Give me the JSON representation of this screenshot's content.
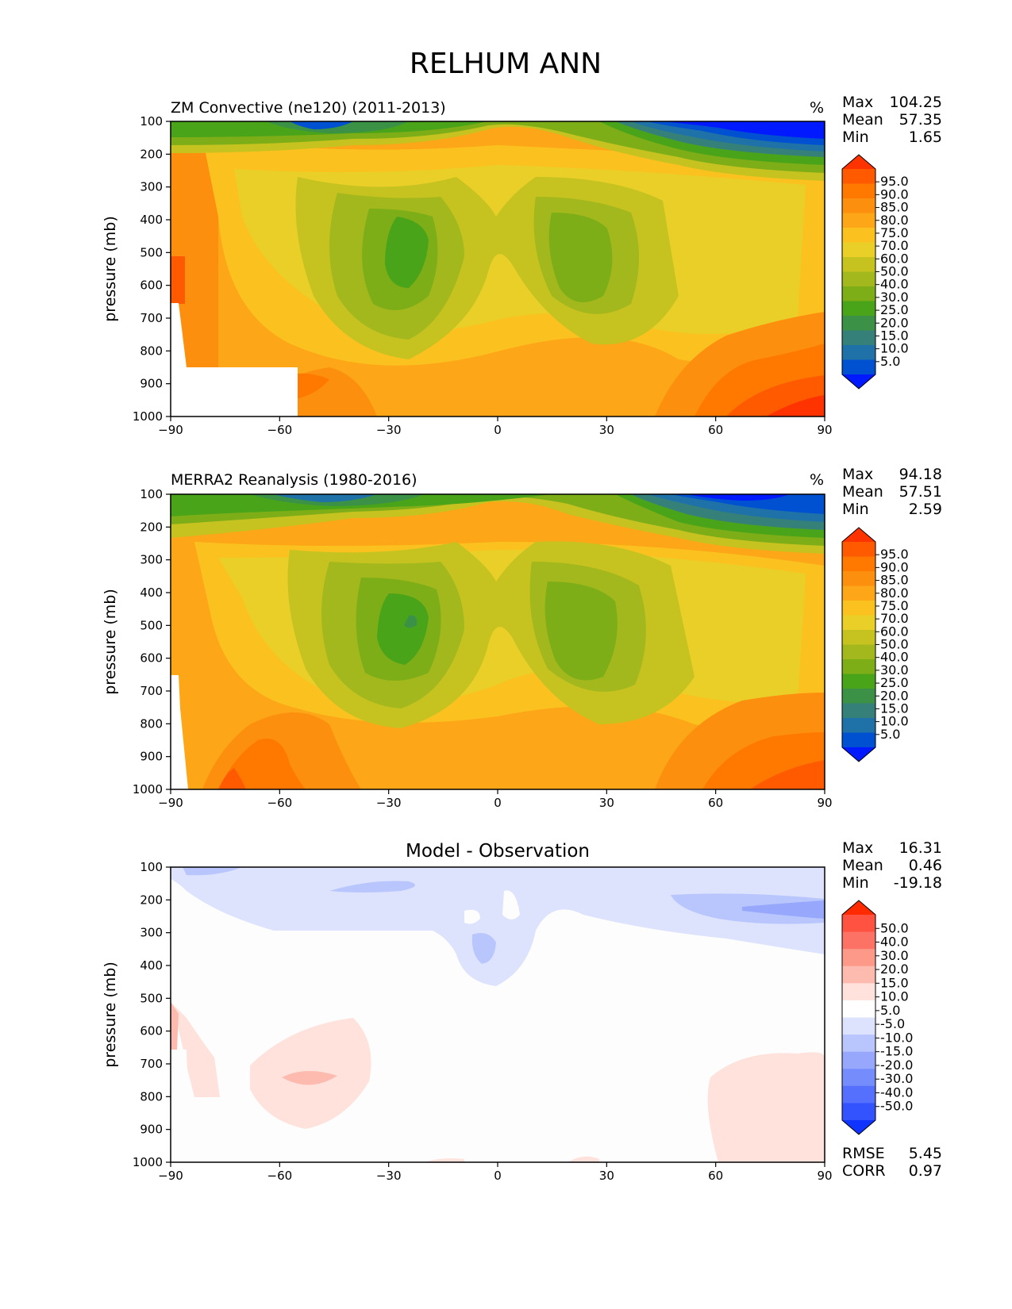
{
  "figure_title": "RELHUM ANN",
  "panels": [
    {
      "title": "ZM Convective (ne120) (2011-2013)",
      "units": "%",
      "stats": [
        {
          "label": "Max",
          "value": "104.25"
        },
        {
          "label": "Mean",
          "value": "57.35"
        },
        {
          "label": "Min",
          "value": "1.65"
        }
      ],
      "colorbar_labels": [
        "95.0",
        "90.0",
        "85.0",
        "80.0",
        "75.0",
        "70.0",
        "60.0",
        "50.0",
        "40.0",
        "30.0",
        "25.0",
        "20.0",
        "15.0",
        "10.0",
        "5.0"
      ]
    },
    {
      "title": "MERRA2 Reanalysis (1980-2016)",
      "units": "%",
      "stats": [
        {
          "label": "Max",
          "value": "94.18"
        },
        {
          "label": "Mean",
          "value": "57.51"
        },
        {
          "label": "Min",
          "value": "2.59"
        }
      ],
      "colorbar_labels": [
        "95.0",
        "90.0",
        "85.0",
        "80.0",
        "75.0",
        "70.0",
        "60.0",
        "50.0",
        "40.0",
        "30.0",
        "25.0",
        "20.0",
        "15.0",
        "10.0",
        "5.0"
      ]
    },
    {
      "title": "Model - Observation",
      "units": "",
      "stats": [
        {
          "label": "Max",
          "value": "16.31"
        },
        {
          "label": "Mean",
          "value": "0.46"
        },
        {
          "label": "Min",
          "value": "-19.18"
        }
      ],
      "colorbar_labels": [
        "50.0",
        "40.0",
        "30.0",
        "20.0",
        "15.0",
        "10.0",
        "5.0",
        "-5.0",
        "-10.0",
        "-15.0",
        "-20.0",
        "-30.0",
        "-40.0",
        "-50.0"
      ],
      "extra_stats": [
        {
          "label": "RMSE",
          "value": "5.45"
        },
        {
          "label": "CORR",
          "value": "0.97"
        }
      ]
    }
  ],
  "colors": {
    "relhum_scale_top_to_bottom": [
      "#ff3300",
      "#ff5a00",
      "#ff7800",
      "#fd8f0f",
      "#fda617",
      "#fbc21f",
      "#e9cf27",
      "#c6c320",
      "#a2b81c",
      "#7eae17",
      "#4aa41a",
      "#3b9247",
      "#36807a",
      "#1f72a7",
      "#0050d2",
      "#0019ff"
    ],
    "diff_scale_top_to_bottom": [
      "#ff2a00",
      "#ff5240",
      "#fc7365",
      "#fd9989",
      "#fdbbb0",
      "#fee2db",
      "#ffffff",
      "#dde3fd",
      "#b9c6fd",
      "#97a8fc",
      "#758cfd",
      "#5470fd",
      "#3253fe",
      "#0f34ff"
    ]
  },
  "chart_data": [
    {
      "type": "heatmap",
      "title": "ZM Convective (ne120) (2011-2013)",
      "ylabel": "pressure (mb)",
      "xlim": [
        -90,
        90
      ],
      "ylim": [
        1000,
        100
      ],
      "x_ticks": [
        -90,
        -60,
        -30,
        0,
        30,
        60,
        90
      ],
      "y_ticks": [
        100,
        200,
        300,
        400,
        500,
        600,
        700,
        800,
        900,
        1000
      ],
      "contour_levels": [
        5,
        10,
        15,
        20,
        25,
        30,
        40,
        50,
        60,
        70,
        75,
        80,
        85,
        90,
        95
      ]
    },
    {
      "type": "heatmap",
      "title": "MERRA2 Reanalysis (1980-2016)",
      "ylabel": "pressure (mb)",
      "xlim": [
        -90,
        90
      ],
      "ylim": [
        1000,
        100
      ],
      "x_ticks": [
        -90,
        -60,
        -30,
        0,
        30,
        60,
        90
      ],
      "y_ticks": [
        100,
        200,
        300,
        400,
        500,
        600,
        700,
        800,
        900,
        1000
      ],
      "contour_levels": [
        5,
        10,
        15,
        20,
        25,
        30,
        40,
        50,
        60,
        70,
        75,
        80,
        85,
        90,
        95
      ]
    },
    {
      "type": "heatmap",
      "title": "Model - Observation",
      "ylabel": "pressure (mb)",
      "xlim": [
        -90,
        90
      ],
      "ylim": [
        1000,
        100
      ],
      "x_ticks": [
        -90,
        -60,
        -30,
        0,
        30,
        60,
        90
      ],
      "y_ticks": [
        100,
        200,
        300,
        400,
        500,
        600,
        700,
        800,
        900,
        1000
      ],
      "contour_levels": [
        -50,
        -40,
        -30,
        -20,
        -15,
        -10,
        -5,
        5,
        10,
        15,
        20,
        30,
        40,
        50
      ]
    }
  ]
}
